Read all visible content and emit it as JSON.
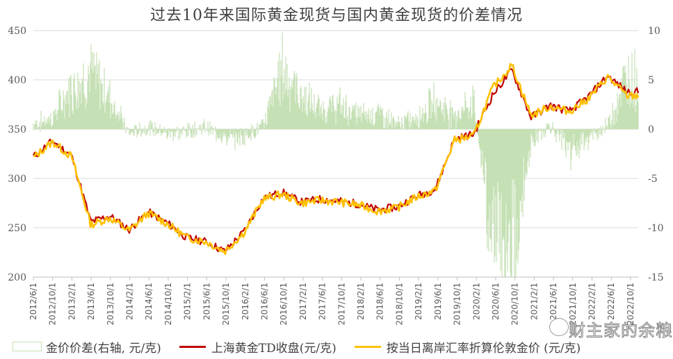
{
  "title": "过去10年来国际黄金现货与国内黄金现货的价差情况",
  "colors": {
    "spread": "#c5e0b4",
    "shanghai_td": "#c00000",
    "london": "#ffc000",
    "grid": "#d9d9d9",
    "axis_text": "#595959"
  },
  "legend": [
    {
      "label": "金价价差(右轴, 元/克)",
      "type": "box"
    },
    {
      "label": "上海黄金TD收盘(元/克)",
      "type": "line"
    },
    {
      "label": "按当日离岸汇率折算伦敦金价 (元/克)",
      "type": "line"
    }
  ],
  "watermark": "财主家的余粮",
  "chart_data": {
    "type": "line",
    "title": "过去10年来国际黄金现货与国内黄金现货的价差情况",
    "xlabel": "",
    "ylabel_left": "元/克",
    "ylabel_right": "元/克",
    "ylim_left": [
      200,
      450
    ],
    "ylim_right": [
      -15,
      10
    ],
    "yticks_left": [
      200,
      250,
      300,
      350,
      400,
      450
    ],
    "yticks_right": [
      -15,
      -10,
      -5,
      0,
      5,
      10
    ],
    "grid": true,
    "legend_position": "bottom",
    "categories": [
      "2012/6/1",
      "2012/10/1",
      "2013/2/1",
      "2013/6/1",
      "2013/10/1",
      "2014/2/1",
      "2014/6/1",
      "2014/10/1",
      "2015/2/1",
      "2015/6/1",
      "2015/10/1",
      "2016/2/1",
      "2016/6/1",
      "2016/10/1",
      "2017/2/1",
      "2017/6/1",
      "2017/10/1",
      "2018/2/1",
      "2018/6/1",
      "2018/10/1",
      "2019/2/1",
      "2019/6/1",
      "2019/10/1",
      "2020/2/1",
      "2020/6/1",
      "2020/10/1",
      "2021/2/1",
      "2021/6/1",
      "2021/10/1",
      "2022/2/1",
      "2022/6/1",
      "2022/10/1"
    ],
    "series": [
      {
        "name": "金价价差(右轴, 元/克)",
        "type": "area",
        "axis": "right",
        "values": [
          0.5,
          1.2,
          4.5,
          6.0,
          3.5,
          -0.5,
          0.2,
          -0.5,
          -0.3,
          0.3,
          -1.0,
          -0.8,
          0.3,
          6.5,
          3.5,
          2.0,
          2.5,
          1.5,
          1.8,
          0.5,
          1.2,
          3.0,
          1.5,
          3.0,
          -12.0,
          -13.0,
          -1.5,
          0.5,
          -2.5,
          -1.0,
          0.5,
          5.5
        ]
      },
      {
        "name": "上海黄金TD收盘(元/克)",
        "type": "line",
        "axis": "left",
        "values": [
          322,
          338,
          323,
          256,
          262,
          248,
          266,
          255,
          240,
          236,
          226,
          246,
          280,
          286,
          276,
          279,
          277,
          274,
          268,
          271,
          282,
          289,
          340,
          345,
          385,
          410,
          362,
          374,
          368,
          383,
          404,
          388
        ]
      },
      {
        "name": "按当日离岸汇率折算伦敦金价 (元/克)",
        "type": "line",
        "axis": "left",
        "values": [
          321,
          337,
          322,
          253,
          260,
          247,
          265,
          254,
          240,
          236,
          226,
          245,
          279,
          284,
          275,
          278,
          276,
          273,
          267,
          270,
          281,
          288,
          339,
          343,
          392,
          415,
          364,
          373,
          368,
          381,
          403,
          384
        ]
      }
    ]
  }
}
